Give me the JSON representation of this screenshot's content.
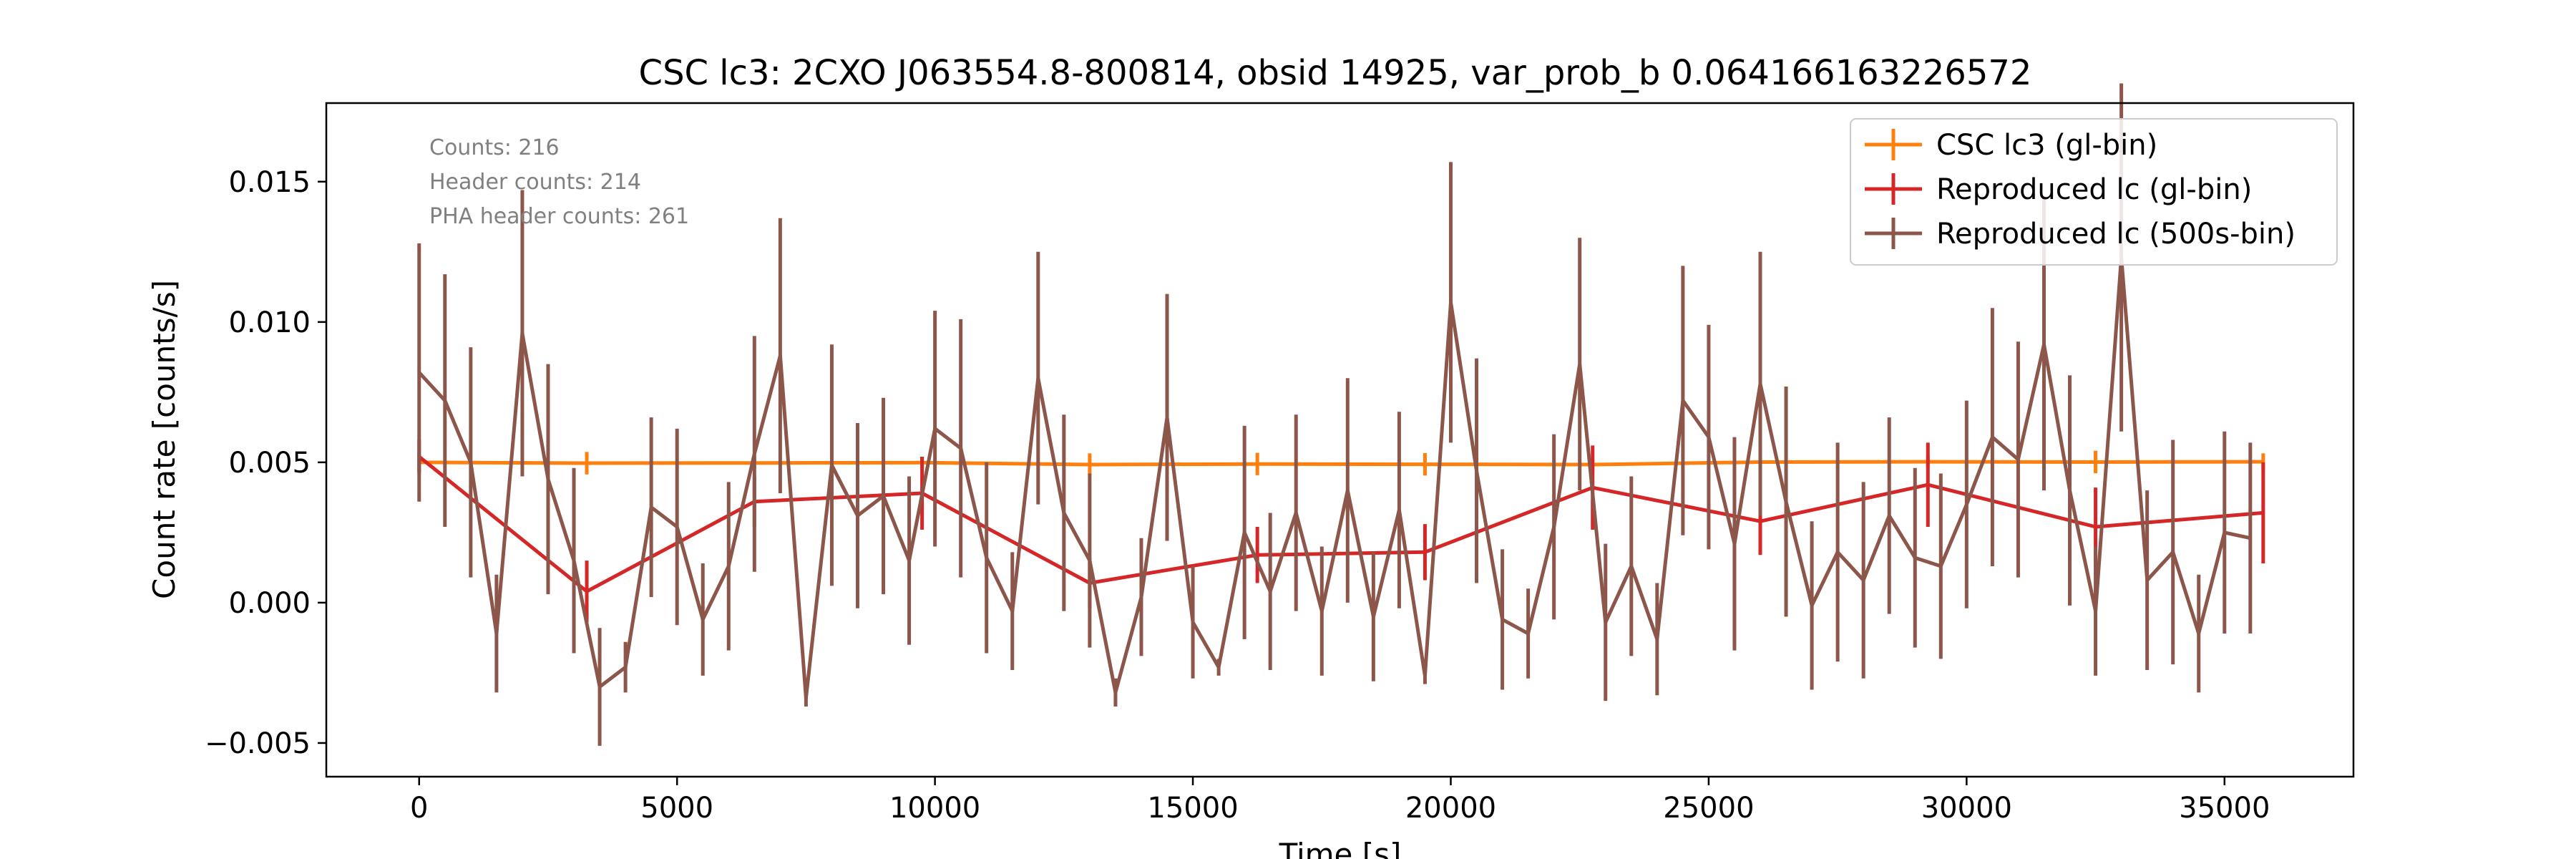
{
  "chart_data": {
    "type": "line",
    "title": "CSC lc3: 2CXO J063554.8-800814, obsid 14925, var_prob_b 0.064166163226572",
    "xlabel": "Time [s]",
    "ylabel": "Count rate [counts/s]",
    "xlim": [
      -1800,
      37500
    ],
    "ylim": [
      -0.0062,
      0.0178
    ],
    "xticks": [
      0,
      5000,
      10000,
      15000,
      20000,
      25000,
      30000,
      35000
    ],
    "xtick_labels": [
      "0",
      "5000",
      "10000",
      "15000",
      "20000",
      "25000",
      "30000",
      "35000"
    ],
    "yticks": [
      -0.005,
      0.0,
      0.005,
      0.01,
      0.015
    ],
    "ytick_labels": [
      "−0.005",
      "0.000",
      "0.005",
      "0.010",
      "0.015"
    ],
    "grid": false,
    "legend_position": "top-right",
    "annotations": [
      "Counts: 216",
      "Header counts: 214",
      "PHA header counts: 261"
    ],
    "series": [
      {
        "name": "CSC lc3 (gl-bin)",
        "color": "#ff7f0e",
        "x": [
          0,
          3250,
          6500,
          9750,
          13000,
          16250,
          19500,
          22750,
          26000,
          29250,
          32500,
          35750
        ],
        "y": [
          0.005,
          0.00497,
          0.00498,
          0.00499,
          0.00492,
          0.00494,
          0.00493,
          0.00492,
          0.00501,
          0.00502,
          0.00501,
          0.00502
        ],
        "yerr": [
          0.0003,
          0.0004,
          0.0002,
          0.0002,
          0.0004,
          0.0004,
          0.0004,
          0.0002,
          0.0004,
          0.0002,
          0.0004,
          0.0003
        ]
      },
      {
        "name": "Reproduced lc (gl-bin)",
        "color": "#d62728",
        "x": [
          0,
          3250,
          6500,
          9750,
          13000,
          16250,
          19500,
          22750,
          26000,
          29250,
          32500,
          35750
        ],
        "y": [
          0.0052,
          0.0004,
          0.0036,
          0.0039,
          0.0007,
          0.0017,
          0.0018,
          0.0041,
          0.0029,
          0.0042,
          0.0027,
          0.0032
        ],
        "yerr": [
          0.0006,
          0.0011,
          0.0009,
          0.0013,
          0.0009,
          0.001,
          0.001,
          0.0015,
          0.0012,
          0.0015,
          0.0014,
          0.0018
        ]
      },
      {
        "name": "Reproduced lc (500s-bin)",
        "color": "#8c564b",
        "x": [
          0,
          500,
          1000,
          1500,
          2000,
          2500,
          3000,
          3500,
          4000,
          4500,
          5000,
          5500,
          6000,
          6500,
          7000,
          7500,
          8000,
          8500,
          9000,
          9500,
          10000,
          10500,
          11000,
          11500,
          12000,
          12500,
          13000,
          13500,
          14000,
          14500,
          15000,
          15500,
          16000,
          16500,
          17000,
          17500,
          18000,
          18500,
          19000,
          19500,
          20000,
          20500,
          21000,
          21500,
          22000,
          22500,
          23000,
          23500,
          24000,
          24500,
          25000,
          25500,
          26000,
          26500,
          27000,
          27500,
          28000,
          28500,
          29000,
          29500,
          30000,
          30500,
          31000,
          31500,
          32000,
          32500,
          33000,
          33500,
          34000,
          34500,
          35000,
          35500
        ],
        "y": [
          0.0082,
          0.0072,
          0.005,
          -0.0011,
          0.0096,
          0.0044,
          0.0015,
          -0.003,
          -0.0023,
          0.0034,
          0.0027,
          -0.0006,
          0.0013,
          0.0053,
          0.0088,
          -0.0034,
          0.0049,
          0.0031,
          0.0038,
          0.0015,
          0.0062,
          0.0055,
          0.0016,
          -0.0003,
          0.008,
          0.0032,
          0.0015,
          -0.0032,
          0.0002,
          0.0066,
          -0.0007,
          -0.0023,
          0.0025,
          0.0004,
          0.0032,
          -0.0003,
          0.004,
          -0.0005,
          0.0033,
          -0.0026,
          0.0107,
          0.0047,
          -0.0006,
          -0.0011,
          0.0027,
          0.0085,
          -0.0007,
          0.0013,
          -0.0013,
          0.0072,
          0.0059,
          0.0021,
          0.0078,
          0.0036,
          -0.0001,
          0.0018,
          0.0008,
          0.0031,
          0.0016,
          0.0013,
          0.0035,
          0.0059,
          0.0051,
          0.0092,
          0.004,
          -0.0003,
          0.0123,
          0.0008,
          0.0018,
          -0.0011,
          0.0025,
          0.0023
        ],
        "yerr": [
          0.0046,
          0.0045,
          0.0041,
          0.0021,
          0.0051,
          0.0041,
          0.0033,
          0.0021,
          0.0009,
          0.0032,
          0.0035,
          0.002,
          0.003,
          0.0042,
          0.0049,
          0.0003,
          0.0043,
          0.0033,
          0.0035,
          0.003,
          0.0042,
          0.0046,
          0.0034,
          0.0021,
          0.0045,
          0.0035,
          0.0031,
          0.0005,
          0.0021,
          0.0044,
          0.002,
          0.0003,
          0.0038,
          0.0028,
          0.0035,
          0.0023,
          0.004,
          0.0023,
          0.0035,
          0.0003,
          0.005,
          0.004,
          0.0025,
          0.0016,
          0.0033,
          0.0045,
          0.0028,
          0.0032,
          0.002,
          0.0048,
          0.004,
          0.0038,
          0.0047,
          0.0041,
          0.003,
          0.0039,
          0.0035,
          0.0035,
          0.0032,
          0.0033,
          0.0037,
          0.0046,
          0.0042,
          0.0052,
          0.0041,
          0.0023,
          0.0062,
          0.0032,
          0.004,
          0.0021,
          0.0036,
          0.0034
        ]
      }
    ]
  }
}
